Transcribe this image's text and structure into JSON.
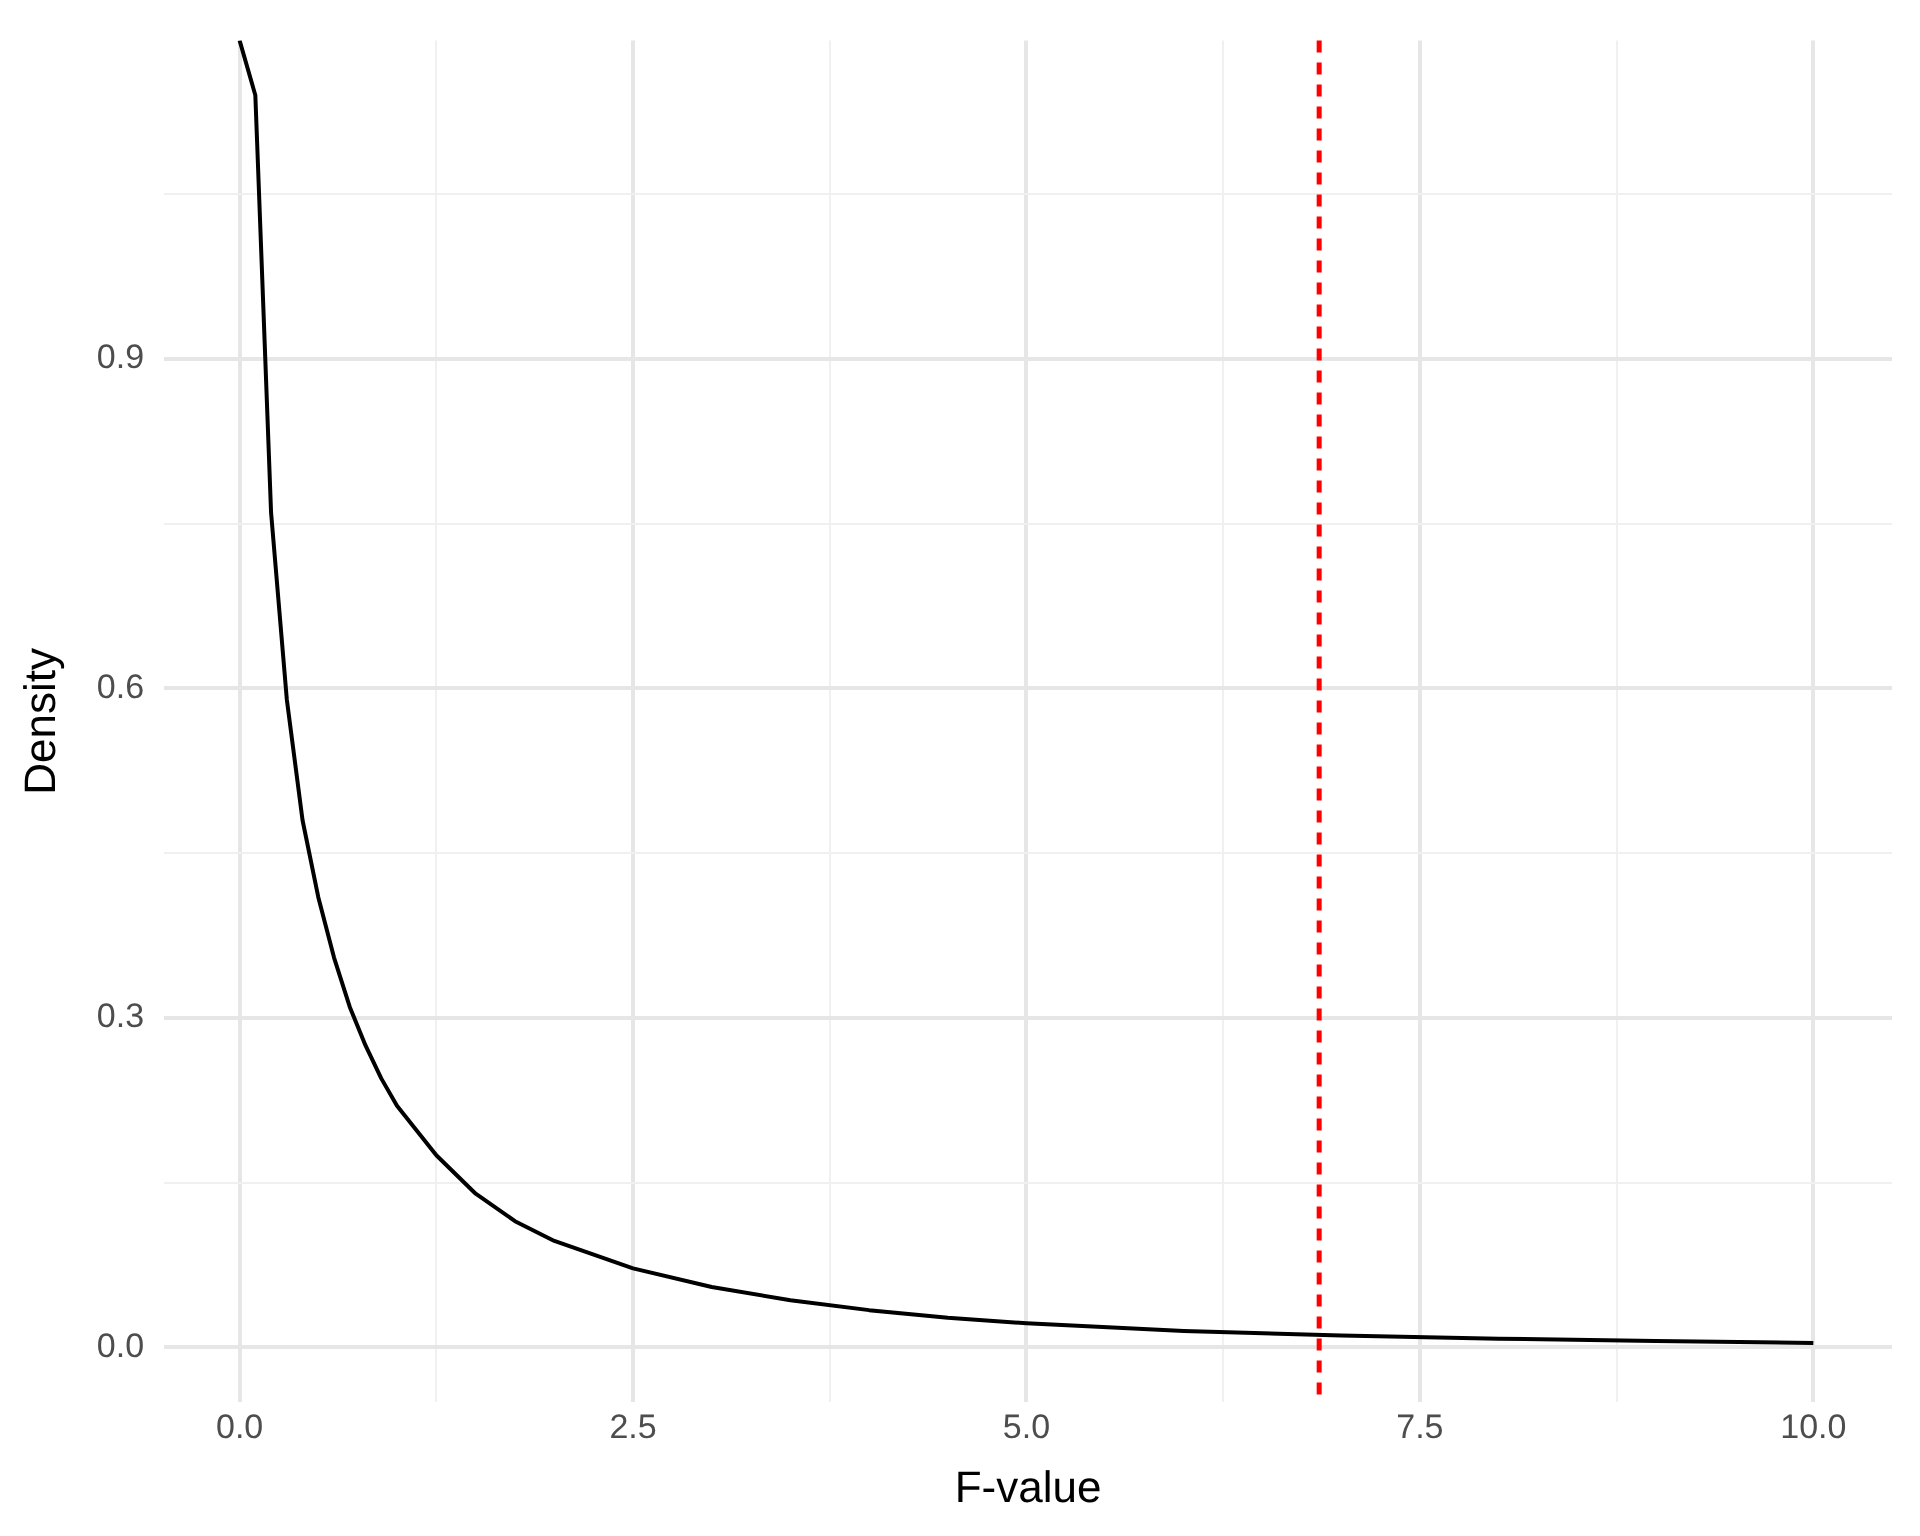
{
  "chart_data": {
    "type": "line",
    "xlabel": "F-value",
    "ylabel": "Density",
    "x": [
      0,
      0.1,
      0.2,
      0.3,
      0.4,
      0.5,
      0.6,
      0.7,
      0.8,
      0.9,
      1,
      1.25,
      1.5,
      1.75,
      2,
      2.5,
      3,
      3.5,
      4,
      4.5,
      5,
      6,
      7,
      8,
      9,
      10
    ],
    "series": [
      {
        "color": "#000000",
        "values": [
          1.19,
          1.14,
          0.76,
          0.59,
          0.48,
          0.41,
          0.355,
          0.31,
          0.275,
          0.245,
          0.22,
          0.175,
          0.14,
          0.115,
          0.097,
          0.072,
          0.055,
          0.043,
          0.034,
          0.027,
          0.022,
          0.015,
          0.011,
          0.008,
          0.006,
          0.004
        ]
      }
    ],
    "xlim": [
      -0.48,
      10.5
    ],
    "ylim": [
      -0.05,
      1.19
    ],
    "xticks": [
      {
        "value": 1.25,
        "label": null
      },
      {
        "value": 0,
        "label": "0.0"
      },
      2.5,
      {
        "value": 3.75,
        "label": null
      },
      {
        "value": 5,
        "label": "5.0"
      },
      {
        "value": 6.25,
        "label": null
      },
      7.5,
      {
        "value": 8.75,
        "label": null
      },
      {
        "value": 10,
        "label": "10.0"
      }
    ],
    "yticks": [
      {
        "value": 0,
        "label": "0.0"
      },
      {
        "value": 0.15,
        "label": null
      },
      0.3,
      {
        "value": 0.45,
        "label": null
      },
      0.6,
      {
        "value": 0.75,
        "label": null
      },
      0.9,
      {
        "value": 1.05,
        "label": null
      }
    ],
    "ref_lines": [
      {
        "axis": "x",
        "value": 6.86,
        "color": "#ff0000",
        "line_style": "dashed"
      }
    ],
    "grid": true,
    "legend": false,
    "marker": "none",
    "line_style": "solid"
  }
}
